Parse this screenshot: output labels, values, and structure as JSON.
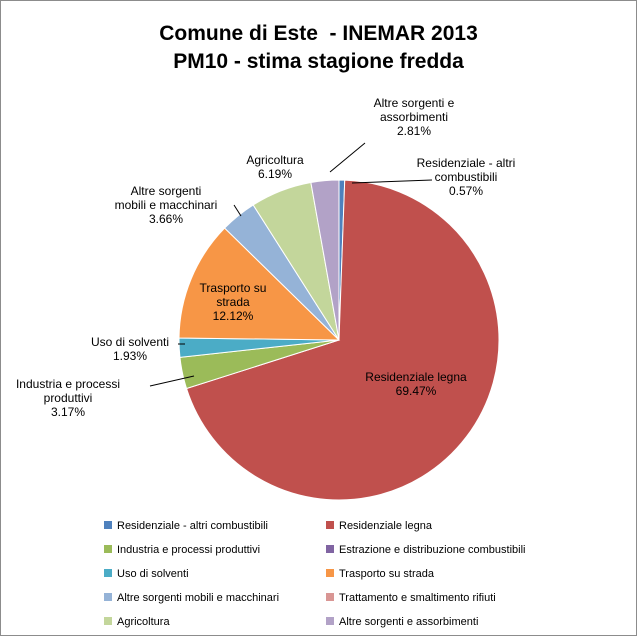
{
  "chart_data": {
    "type": "pie",
    "title_lines": [
      "Comune di Este  - INEMAR 2013",
      "PM10 - stima stagione fredda"
    ],
    "slices": [
      {
        "name": "Residenziale - altri combustibili",
        "value": 0.57,
        "label": [
          "Residenziale - altri",
          "combustibili",
          "0.57%"
        ],
        "color": "#4f81bd"
      },
      {
        "name": "Residenziale legna",
        "value": 69.47,
        "label": [
          "Residenziale legna",
          "69.47%"
        ],
        "color": "#c0504d"
      },
      {
        "name": "Industria e processi produttivi",
        "value": 3.17,
        "label": [
          "Industria e processi",
          "produttivi",
          "3.17%"
        ],
        "color": "#9bbb59"
      },
      {
        "name": "Estrazione e distribuzione combustibili",
        "value": 0,
        "label": null,
        "color": "#8064a2"
      },
      {
        "name": "Uso di solventi",
        "value": 1.93,
        "label": [
          "Uso di solventi",
          "1.93%"
        ],
        "color": "#4bacc6"
      },
      {
        "name": "Trasporto su strada",
        "value": 12.12,
        "label": [
          "Trasporto su",
          "strada",
          "12.12%"
        ],
        "color": "#f79646"
      },
      {
        "name": "Altre sorgenti mobili e macchinari",
        "value": 3.66,
        "label": [
          "Altre sorgenti",
          "mobili e macchinari",
          "3.66%"
        ],
        "color": "#95b3d7"
      },
      {
        "name": "Trattamento  e smaltimento  rifiuti",
        "value": 0,
        "label": null,
        "color": "#d99694"
      },
      {
        "name": "Agricoltura",
        "value": 6.19,
        "label": [
          "Agricoltura",
          "6.19%"
        ],
        "color": "#c3d69b"
      },
      {
        "name": "Altre sorgenti e assorbimenti",
        "value": 2.81,
        "label": [
          "Altre sorgenti e",
          "assorbimenti",
          "2.81%"
        ],
        "color": "#b2a2c7"
      }
    ],
    "legend_position": "bottom"
  }
}
